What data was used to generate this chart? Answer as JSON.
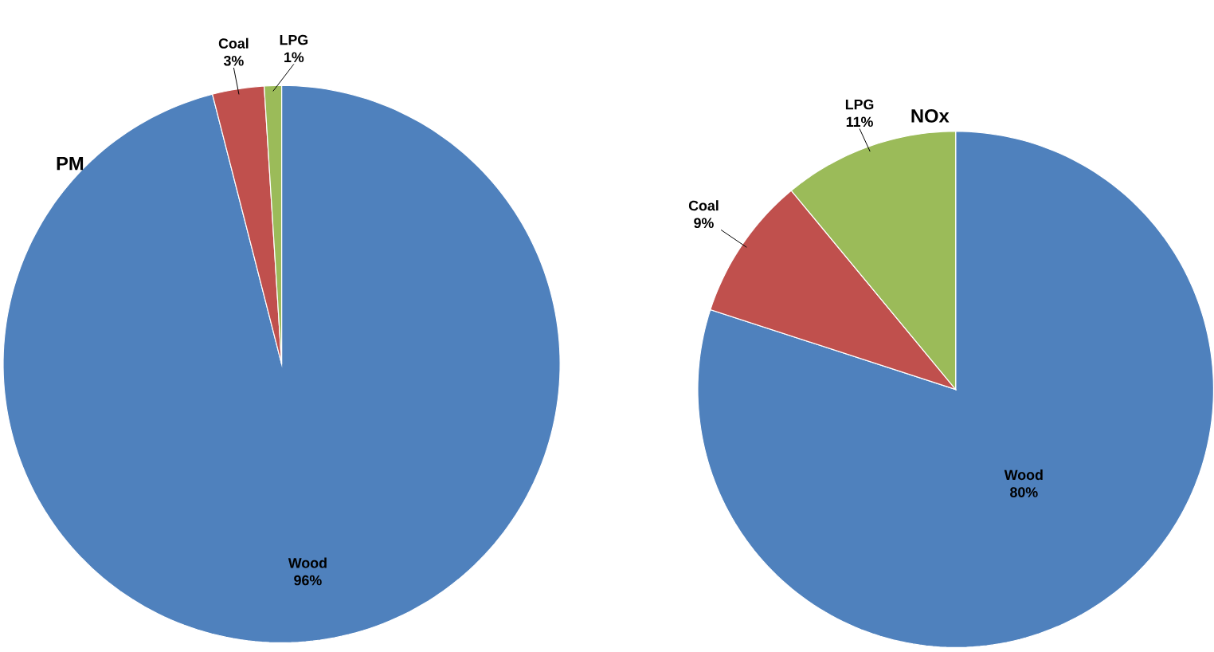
{
  "chart_data": [
    {
      "type": "pie",
      "title": "PM",
      "categories": [
        "Wood",
        "Coal",
        "LPG"
      ],
      "values": [
        96,
        3,
        1
      ],
      "value_labels": [
        "96%",
        "3%",
        "1%"
      ],
      "colors": [
        "#4f81bd",
        "#c0504d",
        "#9bbb59"
      ]
    },
    {
      "type": "pie",
      "title": "NOx",
      "categories": [
        "Wood",
        "Coal",
        "LPG"
      ],
      "values": [
        80,
        9,
        11
      ],
      "value_labels": [
        "80%",
        "9%",
        "11%"
      ],
      "colors": [
        "#4f81bd",
        "#c0504d",
        "#9bbb59"
      ]
    }
  ]
}
